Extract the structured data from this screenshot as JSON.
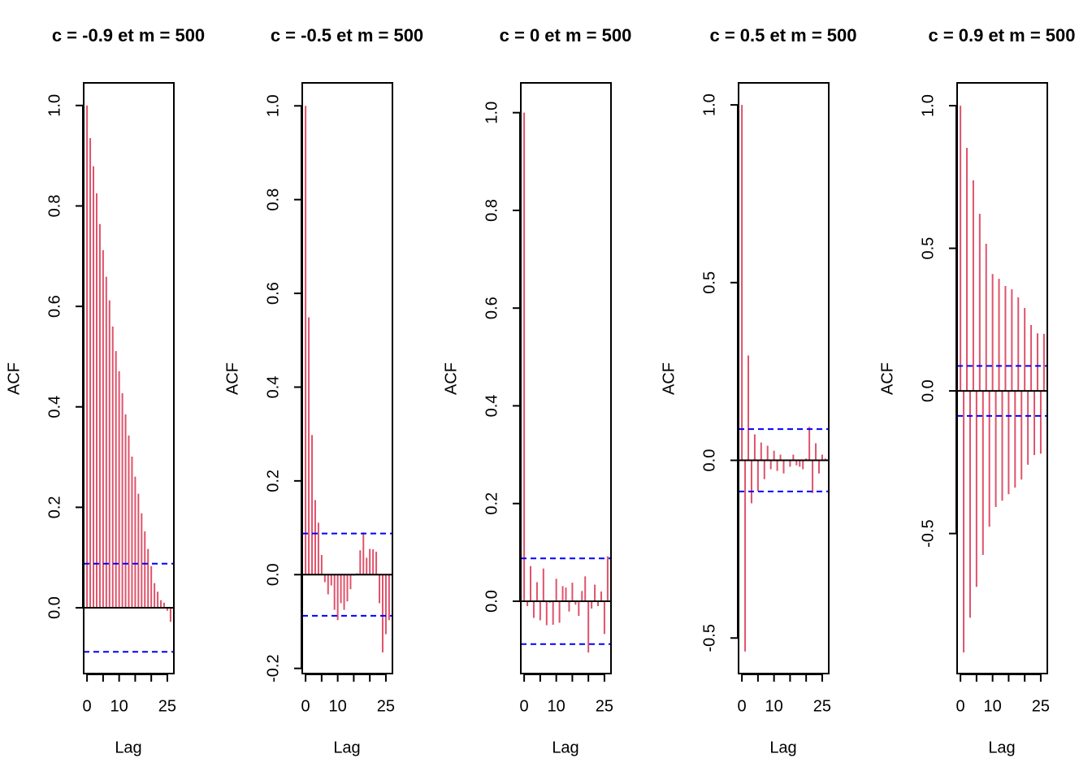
{
  "chart_data": [
    {
      "type": "acf",
      "title": "c =  -0.9 et m =  500",
      "xlabel": "Lag",
      "ylabel": "ACF",
      "x": [
        0,
        1,
        2,
        3,
        4,
        5,
        6,
        7,
        8,
        9,
        10,
        11,
        12,
        13,
        14,
        15,
        16,
        17,
        18,
        19,
        20,
        21,
        22,
        23,
        24,
        25,
        26
      ],
      "values": [
        1.0,
        0.935,
        0.879,
        0.825,
        0.764,
        0.712,
        0.659,
        0.612,
        0.56,
        0.511,
        0.471,
        0.427,
        0.385,
        0.343,
        0.301,
        0.261,
        0.227,
        0.188,
        0.152,
        0.117,
        0.083,
        0.049,
        0.032,
        0.015,
        0.01,
        -0.006,
        -0.028
      ],
      "color": "#df536b",
      "bands": [
        0.0877,
        -0.0877
      ],
      "band_color": "#0000ff",
      "xlim": [
        -1.04,
        27.04
      ],
      "xticks": [
        0,
        10,
        25
      ],
      "xminor": [
        5,
        15,
        20
      ],
      "ylim": [
        -0.131,
        1.045
      ],
      "yticks": [
        {
          "value": 0,
          "label": "0.0"
        },
        0.2,
        0.4,
        0.6,
        0.8,
        {
          "value": 1,
          "label": "1.0"
        }
      ]
    },
    {
      "type": "acf",
      "title": "c =  -0.5 et m =  500",
      "xlabel": "Lag",
      "ylabel": "ACF",
      "x": [
        0,
        1,
        2,
        3,
        4,
        5,
        6,
        7,
        8,
        9,
        10,
        11,
        12,
        13,
        14,
        15,
        16,
        17,
        18,
        19,
        20,
        21,
        22,
        23,
        24,
        25,
        26
      ],
      "values": [
        1.0,
        0.549,
        0.298,
        0.159,
        0.111,
        0.042,
        -0.016,
        -0.042,
        -0.023,
        -0.075,
        -0.097,
        -0.061,
        -0.075,
        -0.057,
        -0.031,
        -0.002,
        0.003,
        0.052,
        0.09,
        0.036,
        0.055,
        0.054,
        0.049,
        -0.061,
        -0.166,
        -0.127,
        -0.097
      ],
      "color": "#df536b",
      "bands": [
        0.0877,
        -0.0877
      ],
      "band_color": "#0000ff",
      "xlim": [
        -1.04,
        27.04
      ],
      "xticks": [
        0,
        10,
        25
      ],
      "xminor": [
        5,
        15,
        20
      ],
      "ylim": [
        -0.211,
        1.049
      ],
      "yticks": [
        -0.2,
        {
          "value": 0,
          "label": "0.0"
        },
        0.2,
        0.4,
        0.6,
        0.8,
        {
          "value": 1,
          "label": "1.0"
        }
      ]
    },
    {
      "type": "acf",
      "title": "c =  0 et m =  500",
      "xlabel": "Lag",
      "ylabel": "ACF",
      "x": [
        0,
        1,
        2,
        3,
        4,
        5,
        6,
        7,
        8,
        9,
        10,
        11,
        12,
        13,
        14,
        15,
        16,
        17,
        18,
        19,
        20,
        21,
        22,
        23,
        24,
        25,
        26
      ],
      "values": [
        1.0,
        -0.01,
        0.072,
        -0.034,
        0.039,
        -0.039,
        0.067,
        -0.049,
        -0.003,
        -0.048,
        0.046,
        -0.044,
        0.031,
        0.028,
        -0.021,
        0.038,
        -0.007,
        -0.03,
        0.021,
        0.051,
        -0.105,
        -0.015,
        0.034,
        -0.01,
        0.02,
        -0.067,
        0.092
      ],
      "color": "#df536b",
      "bands": [
        0.0877,
        -0.0877
      ],
      "band_color": "#0000ff",
      "xlim": [
        -1.04,
        27.04
      ],
      "xticks": [
        0,
        10,
        25
      ],
      "xminor": [
        5,
        15,
        20
      ],
      "ylim": [
        -0.148,
        1.061
      ],
      "yticks": [
        {
          "value": 0,
          "label": "0.0"
        },
        0.2,
        0.4,
        0.6,
        0.8,
        {
          "value": 1,
          "label": "1.0"
        }
      ]
    },
    {
      "type": "acf",
      "title": "c =  0.5 et m =  500",
      "xlabel": "Lag",
      "ylabel": "ACF",
      "x": [
        0,
        1,
        2,
        3,
        4,
        5,
        6,
        7,
        8,
        9,
        10,
        11,
        12,
        13,
        14,
        15,
        16,
        17,
        18,
        19,
        20,
        21,
        22,
        23,
        24,
        25,
        26
      ],
      "values": [
        1.0,
        -0.538,
        0.295,
        -0.121,
        0.073,
        -0.087,
        0.05,
        -0.053,
        0.041,
        -0.025,
        0.027,
        -0.03,
        0.016,
        -0.037,
        0.002,
        -0.018,
        0.016,
        -0.014,
        -0.018,
        -0.025,
        0.005,
        0.094,
        -0.092,
        0.048,
        -0.037,
        0.016,
        0.005
      ],
      "color": "#df536b",
      "bands": [
        0.0877,
        -0.0877
      ],
      "band_color": "#0000ff",
      "xlim": [
        -1.04,
        27.04
      ],
      "xticks": [
        0,
        10,
        25
      ],
      "xminor": [
        5,
        15,
        20
      ],
      "ylim": [
        -0.6,
        1.062
      ],
      "yticks": [
        -0.5,
        {
          "value": 0,
          "label": "0.0"
        },
        0.5,
        {
          "value": 1,
          "label": "1.0"
        }
      ]
    },
    {
      "type": "acf",
      "title": "c =  0.9 et m =  500",
      "xlabel": "Lag",
      "ylabel": "ACF",
      "x": [
        0,
        1,
        2,
        3,
        4,
        5,
        6,
        7,
        8,
        9,
        10,
        11,
        12,
        13,
        14,
        15,
        16,
        17,
        18,
        19,
        20,
        21,
        22,
        23,
        24,
        25,
        26
      ],
      "values": [
        1.0,
        -0.917,
        0.852,
        -0.795,
        0.738,
        -0.687,
        0.621,
        -0.575,
        0.516,
        -0.476,
        0.41,
        -0.407,
        0.393,
        -0.385,
        0.368,
        -0.362,
        0.356,
        -0.339,
        0.328,
        -0.311,
        0.291,
        -0.259,
        0.231,
        -0.225,
        0.202,
        -0.22,
        0.2
      ],
      "color": "#df536b",
      "bands": [
        0.0877,
        -0.0877
      ],
      "band_color": "#0000ff",
      "xlim": [
        -1.04,
        27.04
      ],
      "xticks": [
        0,
        10,
        25
      ],
      "xminor": [
        5,
        15,
        20
      ],
      "ylim": [
        -0.991,
        1.08
      ],
      "yticks": [
        -0.5,
        {
          "value": 0,
          "label": "0.0"
        },
        0.5,
        {
          "value": 1,
          "label": "1.0"
        }
      ]
    }
  ]
}
